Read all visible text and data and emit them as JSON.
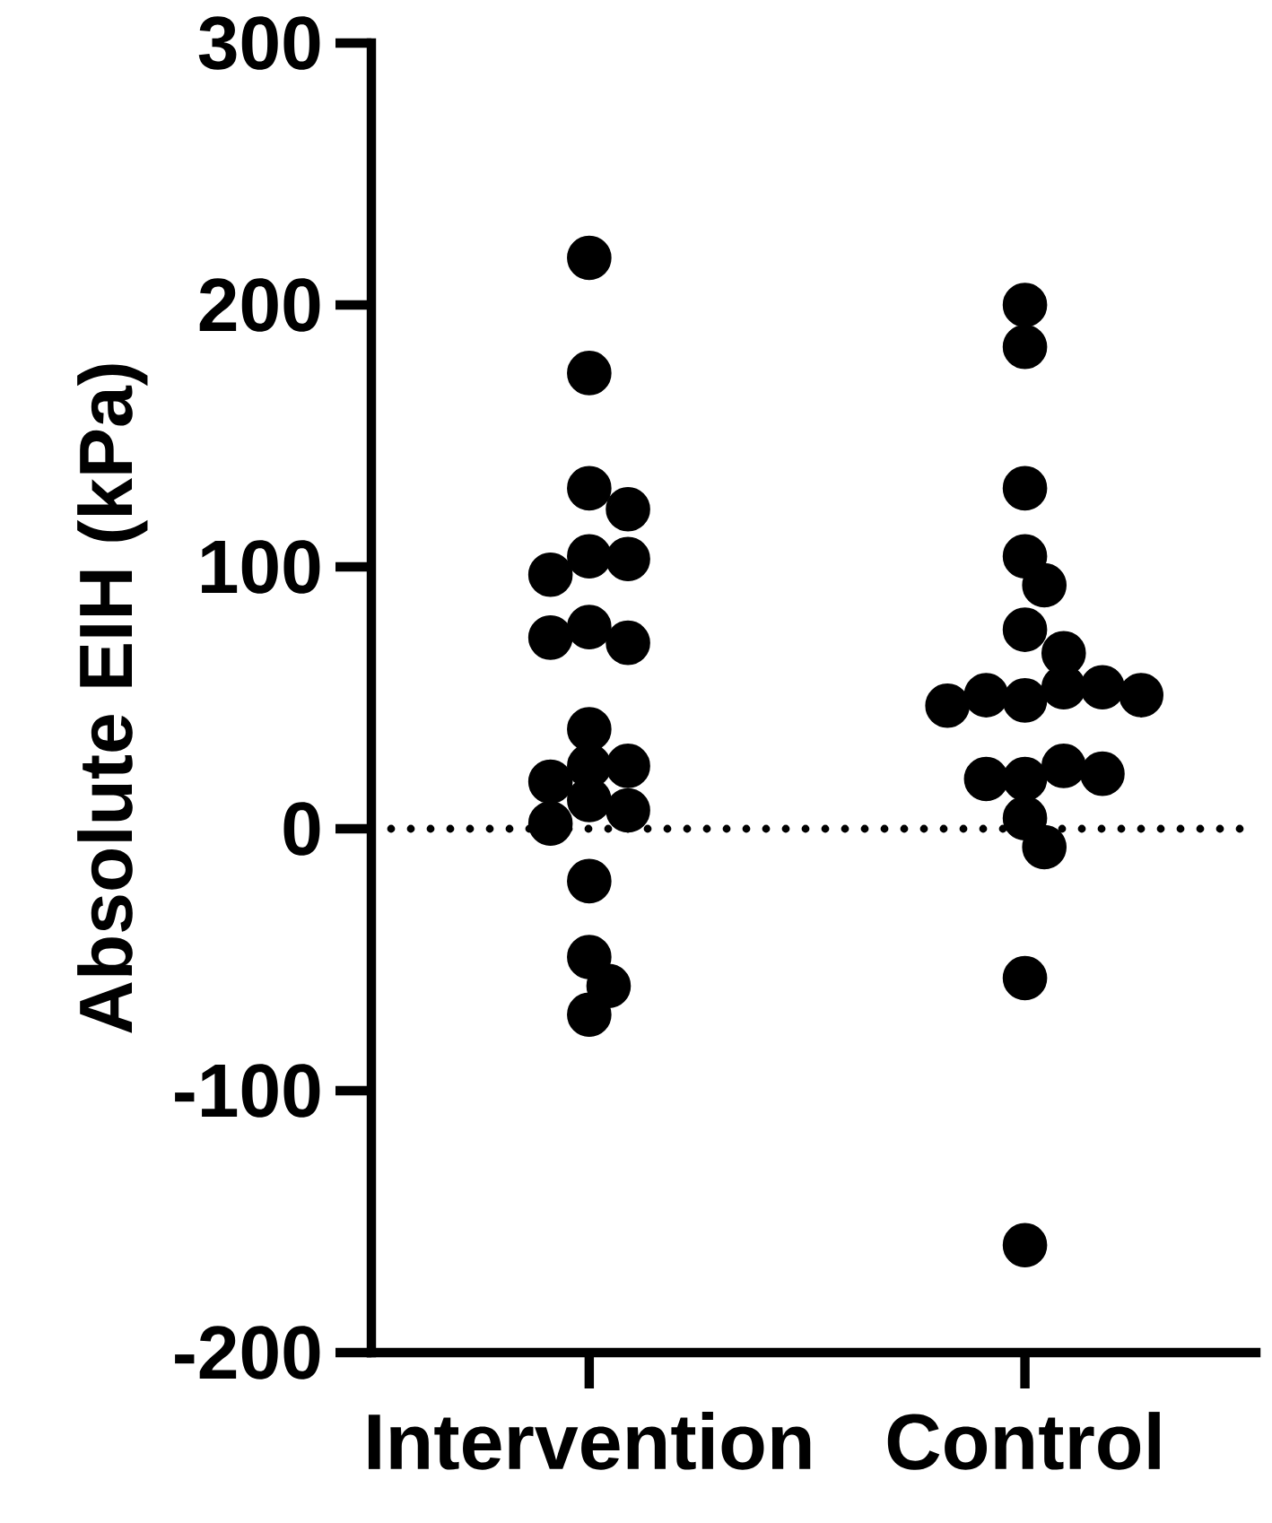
{
  "chart_data": {
    "type": "scatter",
    "ylabel": "Absolute EIH (kPa)",
    "categories": [
      "Intervention",
      "Control"
    ],
    "ylim": [
      -200,
      300
    ],
    "yticks": [
      -200,
      -100,
      0,
      100,
      200,
      300
    ],
    "grid": false,
    "ref_lines": [
      {
        "axis": "y",
        "value": 0,
        "line_style": "dotted",
        "color": "#000000"
      }
    ],
    "series": [
      {
        "color": "#000000",
        "x": [
          "Intervention",
          "Intervention",
          "Intervention",
          "Intervention",
          "Intervention",
          "Intervention",
          "Intervention",
          "Intervention",
          "Intervention",
          "Intervention",
          "Intervention",
          "Intervention",
          "Intervention",
          "Intervention",
          "Intervention",
          "Intervention",
          "Intervention",
          "Intervention",
          "Intervention",
          "Intervention",
          "Intervention"
        ],
        "values": [
          218,
          174,
          130,
          122,
          104,
          103,
          97,
          77,
          71,
          73,
          38,
          24,
          24,
          18,
          11,
          7,
          2,
          -20,
          -49,
          -60,
          -71
        ]
      },
      {
        "color": "#000000",
        "x": [
          "Control",
          "Control",
          "Control",
          "Control",
          "Control",
          "Control",
          "Control",
          "Control",
          "Control",
          "Control",
          "Control",
          "Control",
          "Control",
          "Control",
          "Control",
          "Control",
          "Control",
          "Control",
          "Control",
          "Control",
          "Control"
        ],
        "values": [
          200,
          184,
          130,
          104,
          93,
          76,
          67,
          49,
          54,
          51,
          54,
          47,
          51,
          19,
          24,
          19,
          21,
          4,
          -7,
          -57,
          -159
        ]
      }
    ]
  }
}
